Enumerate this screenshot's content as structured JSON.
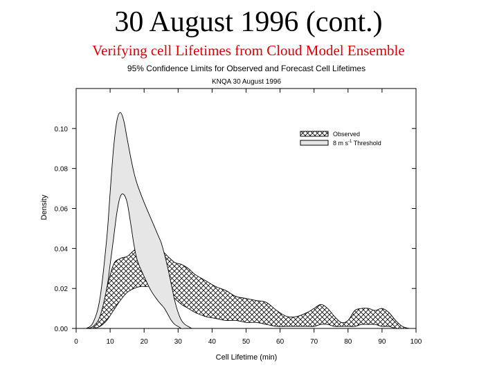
{
  "slide": {
    "title": "30 August 1996 (cont.)",
    "subtitle": "Verifying cell Lifetimes from Cloud Model Ensemble",
    "subtitle_color": "#e00000"
  },
  "chart_data": {
    "type": "area",
    "title": "95% Confidence Limits for Observed and Forecast Cell Lifetimes",
    "subtitle": "KNQA 30 August 1996",
    "xlabel": "Cell Lifetime (min)",
    "ylabel": "Density",
    "xlim": [
      0,
      100
    ],
    "ylim": [
      0,
      0.12
    ],
    "xticks": [
      0,
      10,
      20,
      30,
      40,
      50,
      60,
      70,
      80,
      90,
      100
    ],
    "yticks": [
      0.0,
      0.02,
      0.04,
      0.06,
      0.08,
      0.1
    ],
    "ytick_labels": [
      "0.00",
      "0.02",
      "0.04",
      "0.06",
      "0.08",
      "0.10"
    ],
    "grid": false,
    "legend_position": "top-right",
    "series": [
      {
        "name": "Observed",
        "fill": "crosshatch",
        "x": [
          3,
          5,
          7,
          9,
          11,
          13,
          15,
          17,
          19,
          21,
          23,
          25,
          27,
          29,
          31,
          33,
          35,
          38,
          41,
          44,
          47,
          50,
          53,
          56,
          59,
          62,
          65,
          68,
          70,
          72,
          74,
          76,
          78,
          80,
          82,
          84,
          86,
          88,
          90,
          92,
          94,
          96,
          98
        ],
        "upper": [
          0.0,
          0.002,
          0.008,
          0.02,
          0.032,
          0.035,
          0.036,
          0.039,
          0.041,
          0.039,
          0.038,
          0.039,
          0.036,
          0.033,
          0.032,
          0.03,
          0.027,
          0.024,
          0.021,
          0.019,
          0.016,
          0.015,
          0.014,
          0.013,
          0.009,
          0.006,
          0.006,
          0.008,
          0.01,
          0.012,
          0.01,
          0.006,
          0.003,
          0.004,
          0.009,
          0.01,
          0.01,
          0.009,
          0.01,
          0.008,
          0.004,
          0.001,
          0.0
        ],
        "lower": [
          0.0,
          0.0,
          0.001,
          0.004,
          0.009,
          0.014,
          0.018,
          0.02,
          0.021,
          0.021,
          0.022,
          0.021,
          0.018,
          0.015,
          0.012,
          0.01,
          0.008,
          0.006,
          0.005,
          0.004,
          0.004,
          0.003,
          0.003,
          0.002,
          0.001,
          0.001,
          0.001,
          0.001,
          0.001,
          0.002,
          0.002,
          0.001,
          0.001,
          0.001,
          0.001,
          0.002,
          0.002,
          0.002,
          0.001,
          0.001,
          0.0,
          0.0,
          0.0
        ]
      },
      {
        "name": "8 m s-1 Threshold",
        "name_base": "8 m s",
        "name_sup": "-1",
        "name_tail": " Threshold",
        "fill": "#e6e6e6",
        "x": [
          3,
          5,
          7,
          9,
          10,
          11,
          12,
          13,
          14,
          15,
          16,
          17,
          18,
          20,
          22,
          24,
          25,
          26,
          27,
          28,
          29,
          30,
          31,
          32,
          33,
          34
        ],
        "upper": [
          0.0,
          0.003,
          0.015,
          0.045,
          0.068,
          0.09,
          0.104,
          0.108,
          0.104,
          0.095,
          0.086,
          0.078,
          0.072,
          0.063,
          0.055,
          0.047,
          0.043,
          0.037,
          0.03,
          0.022,
          0.014,
          0.008,
          0.004,
          0.002,
          0.001,
          0.0
        ],
        "lower": [
          0.0,
          0.001,
          0.006,
          0.02,
          0.032,
          0.045,
          0.058,
          0.066,
          0.067,
          0.063,
          0.053,
          0.042,
          0.034,
          0.026,
          0.019,
          0.014,
          0.012,
          0.01,
          0.007,
          0.004,
          0.002,
          0.001,
          0.0,
          0.0,
          0.0,
          0.0
        ]
      }
    ]
  }
}
